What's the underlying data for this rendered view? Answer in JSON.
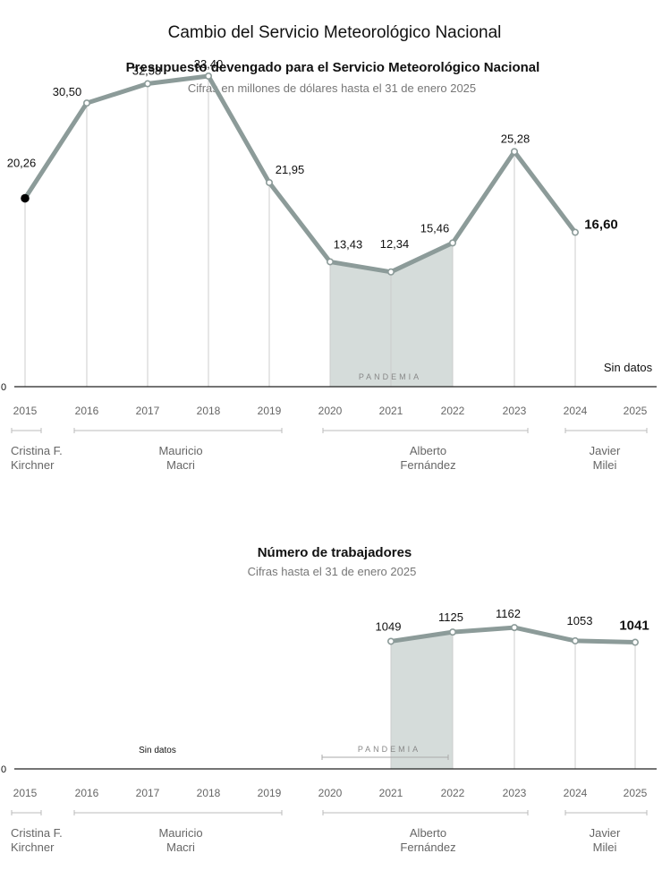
{
  "title": "Cambio del Servicio Meteorológico Nacional",
  "colors": {
    "line": "#8c9b99",
    "shade": "#d5dcda",
    "axis": "#222222",
    "grid": "#cccccc",
    "text": "#111111",
    "muted": "#777777"
  },
  "chart_data": [
    {
      "type": "line",
      "title": "Presupuesto devengado para el Servicio Meteorológico Nacional",
      "subtitle": "Cifras en millones de dólares hasta el 31 de enero 2025",
      "categories": [
        "2015",
        "2016",
        "2017",
        "2018",
        "2019",
        "2020",
        "2021",
        "2022",
        "2023",
        "2024",
        "2025"
      ],
      "series": [
        {
          "name": "Presupuesto",
          "values": [
            20.26,
            30.5,
            32.58,
            33.4,
            21.95,
            13.43,
            12.34,
            15.46,
            25.28,
            16.6,
            null
          ]
        }
      ],
      "labels": [
        "20,26",
        "30,50",
        "32,58",
        "33,40",
        "21,95",
        "13,43",
        "12,34",
        "15,46",
        "25,28",
        "16,60",
        ""
      ],
      "ylim": [
        0,
        36
      ],
      "zero_label": "0",
      "no_data_label": "Sin datos",
      "pandemic": {
        "label": "PANDEMIA",
        "from": "2020",
        "to": "2022"
      },
      "governments": [
        {
          "name_line1": "Cristina F.",
          "name_line2": "Kirchner",
          "from": "2015",
          "to": "2015"
        },
        {
          "name_line1": "Mauricio",
          "name_line2": "Macri",
          "from": "2016",
          "to": "2019"
        },
        {
          "name_line1": "Alberto",
          "name_line2": "Fernández",
          "from": "2020",
          "to": "2023"
        },
        {
          "name_line1": "Javier",
          "name_line2": "Milei",
          "from": "2024",
          "to": "2025"
        }
      ]
    },
    {
      "type": "area",
      "title": "Número de trabajadores",
      "subtitle": "Cifras hasta el 31 de enero 2025",
      "categories": [
        "2015",
        "2016",
        "2017",
        "2018",
        "2019",
        "2020",
        "2021",
        "2022",
        "2023",
        "2024",
        "2025"
      ],
      "series": [
        {
          "name": "Trabajadores",
          "values": [
            null,
            null,
            null,
            null,
            null,
            null,
            1049,
            1125,
            1162,
            1053,
            1041
          ]
        }
      ],
      "labels": [
        "",
        "",
        "",
        "",
        "",
        "",
        "1049",
        "1125",
        "1162",
        "1053",
        "1041"
      ],
      "ylim": [
        0,
        1310
      ],
      "zero_label": "0",
      "no_data_label": "Sin datos",
      "pandemic": {
        "label": "PANDEMIA",
        "from": "2020",
        "to": "2022"
      },
      "governments": [
        {
          "name_line1": "Cristina F.",
          "name_line2": "Kirchner",
          "from": "2015",
          "to": "2015"
        },
        {
          "name_line1": "Mauricio",
          "name_line2": "Macri",
          "from": "2016",
          "to": "2019"
        },
        {
          "name_line1": "Alberto",
          "name_line2": "Fernández",
          "from": "2020",
          "to": "2023"
        },
        {
          "name_line1": "Javier",
          "name_line2": "Milei",
          "from": "2024",
          "to": "2025"
        }
      ]
    }
  ]
}
